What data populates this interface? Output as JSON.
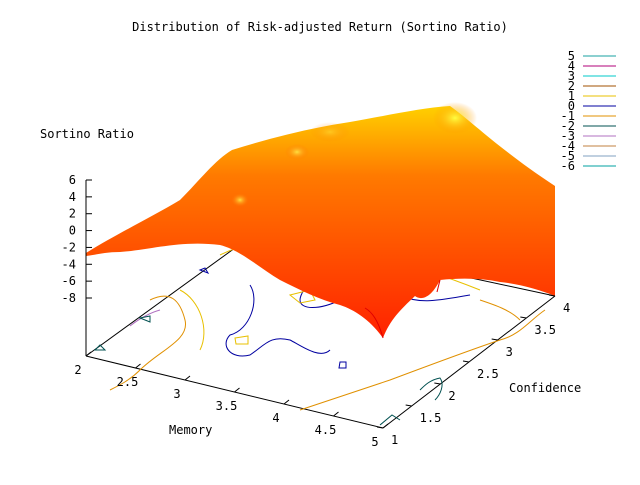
{
  "chart_data": {
    "type": "surface3d",
    "title": "Distribution of Risk-adjusted Return (Sortino Ratio)",
    "zlabel": "Sortino Ratio",
    "xlabel": "Memory",
    "ylabel": "Confidence",
    "x_ticks": [
      "2",
      "2.5",
      "3",
      "3.5",
      "4",
      "4.5",
      "5"
    ],
    "x_range": [
      2,
      5
    ],
    "y_ticks": [
      "1",
      "1.5",
      "2",
      "2.5",
      "3",
      "3.5",
      "4"
    ],
    "y_range": [
      1,
      4
    ],
    "z_ticks": [
      "6",
      "4",
      "2",
      "0",
      "-2",
      "-4",
      "-6",
      "-8"
    ],
    "z_range": [
      -8,
      6
    ],
    "legend_position": "top-right",
    "contour_levels": [
      {
        "level": "5",
        "color": "#1aa0a0"
      },
      {
        "level": "4",
        "color": "#b0007a"
      },
      {
        "level": "3",
        "color": "#00c8c8"
      },
      {
        "level": "2",
        "color": "#a05000"
      },
      {
        "level": "1",
        "color": "#e8c000"
      },
      {
        "level": "0",
        "color": "#0000a0"
      },
      {
        "level": "-1",
        "color": "#e09000"
      },
      {
        "level": "-2",
        "color": "#005050"
      },
      {
        "level": "-3",
        "color": "#b070c0"
      },
      {
        "level": "-4",
        "color": "#c08040"
      },
      {
        "level": "-5",
        "color": "#80a0c0"
      },
      {
        "level": "-6",
        "color": "#00a0a0"
      }
    ],
    "surface_colors": [
      "#ff2000",
      "#ff8800",
      "#ffff00"
    ]
  }
}
